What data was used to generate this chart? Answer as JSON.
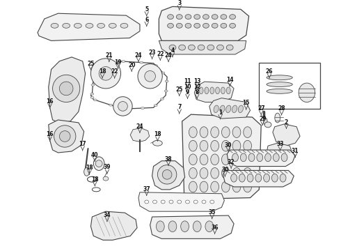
{
  "background_color": "#ffffff",
  "line_color": "#444444",
  "label_color": "#111111",
  "fig_width": 4.9,
  "fig_height": 3.6,
  "dpi": 100
}
